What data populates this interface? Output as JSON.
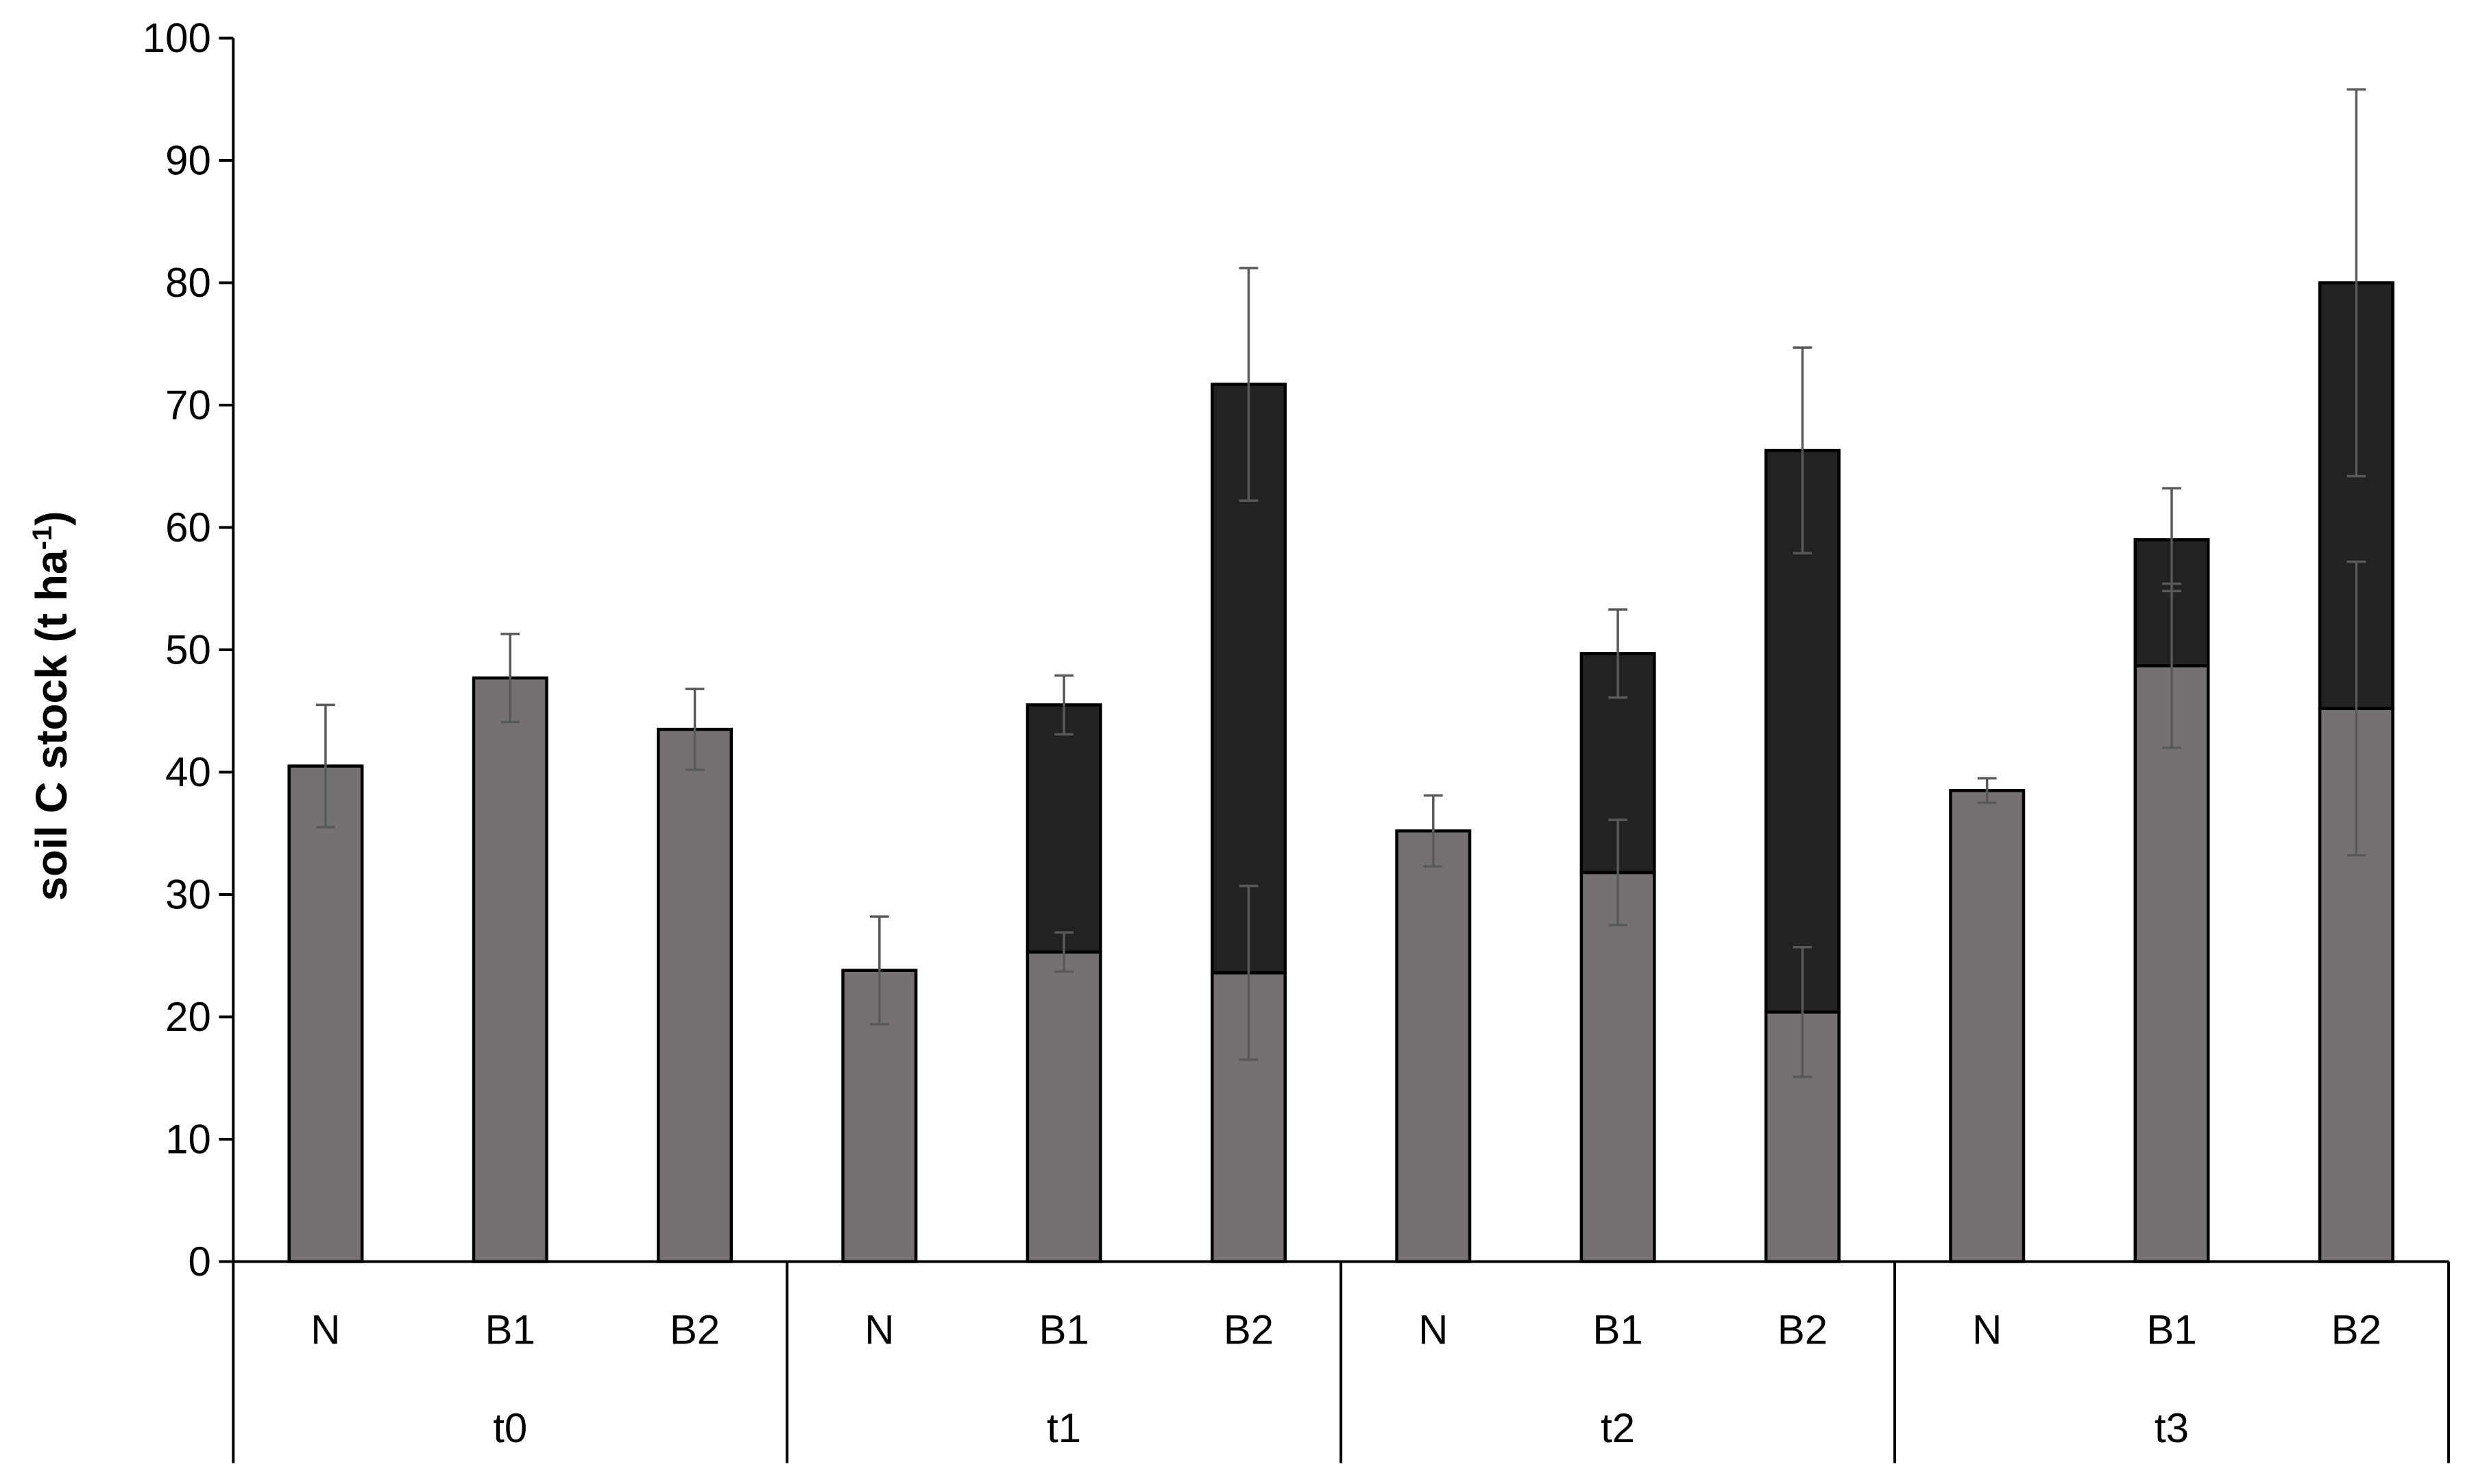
{
  "chart_data": {
    "type": "bar",
    "stacked": true,
    "title": "",
    "xlabel": "",
    "ylabel": "soil C stock (t ha-1)",
    "ylabel_parts": {
      "main": "soil C stock (t ha",
      "sup": "-1",
      "close": ")"
    },
    "ylim": [
      0,
      100
    ],
    "yticks": [
      0,
      10,
      20,
      30,
      40,
      50,
      60,
      70,
      80,
      90,
      100
    ],
    "grid": false,
    "legend": "none",
    "groups": [
      "t0",
      "t1",
      "t2",
      "t3"
    ],
    "categories": [
      "N",
      "B1",
      "B2"
    ],
    "colors": {
      "lower": "#767171",
      "upper": "#222222",
      "error_bar": "#595959",
      "axis": "#000000"
    },
    "series": [
      {
        "key": "lower",
        "values": [
          [
            40.5,
            47.7,
            43.5
          ],
          [
            23.8,
            25.3,
            23.6
          ],
          [
            35.2,
            31.8,
            20.4
          ],
          [
            38.5,
            48.7,
            45.2
          ]
        ],
        "errors": [
          [
            5.0,
            3.6,
            3.3
          ],
          [
            4.4,
            1.6,
            7.1
          ],
          [
            2.9,
            4.3,
            5.3
          ],
          [
            1.0,
            6.7,
            12.0
          ]
        ]
      },
      {
        "key": "upper",
        "values": [
          [
            0,
            0,
            0
          ],
          [
            0,
            20.2,
            48.1
          ],
          [
            0,
            17.9,
            45.9
          ],
          [
            0,
            10.3,
            34.8
          ]
        ],
        "errors": [
          [
            0,
            0,
            0
          ],
          [
            0,
            2.4,
            9.5
          ],
          [
            0,
            3.6,
            8.4
          ],
          [
            0,
            4.2,
            15.8
          ]
        ]
      }
    ]
  }
}
